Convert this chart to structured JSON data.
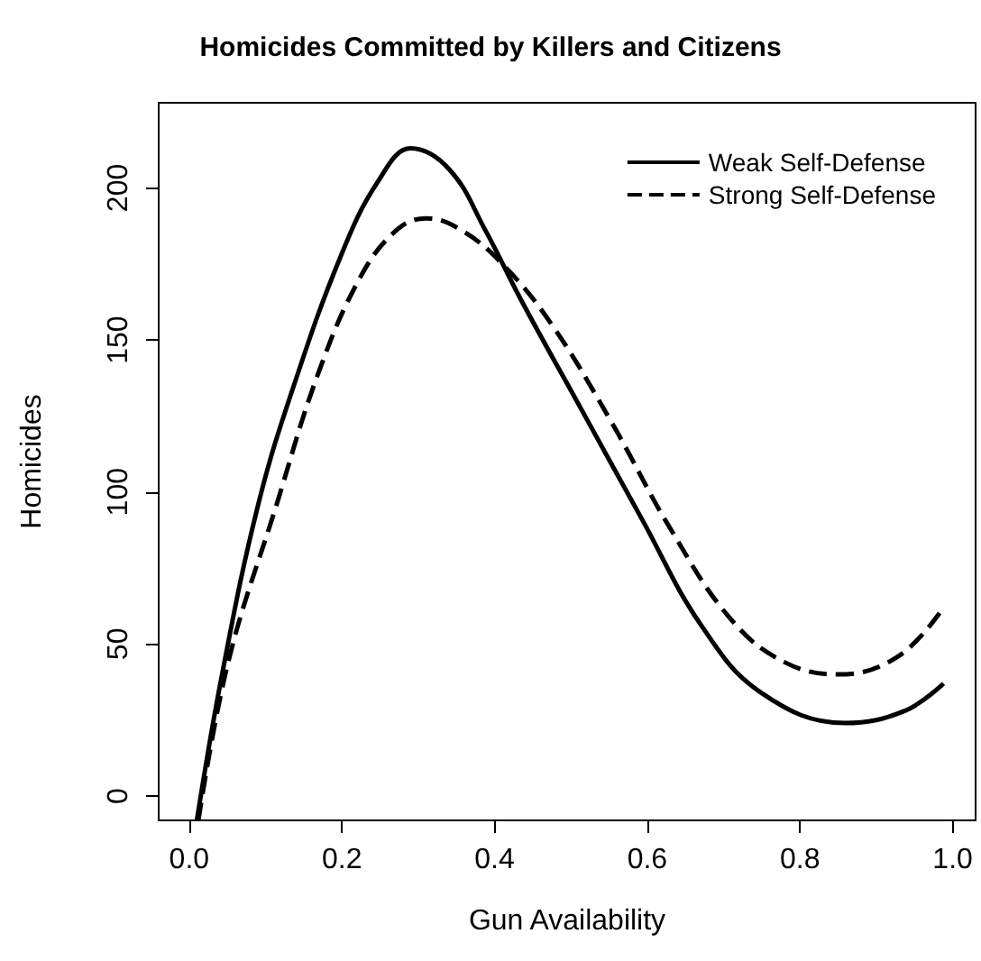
{
  "chart_data": {
    "type": "line",
    "title": "Homicides Committed by Killers and Citizens",
    "xlabel": "Gun Availability",
    "ylabel": "Homicides",
    "xlim": [
      -0.04,
      1.03
    ],
    "xticks": [
      {
        "value": 0,
        "label": "0.0"
      },
      0.2,
      0.4,
      0.6,
      0.8,
      {
        "value": 1,
        "label": "1.0"
      }
    ],
    "ylim": [
      -8,
      228
    ],
    "yticks": [
      0,
      50,
      100,
      150,
      200
    ],
    "grid": false,
    "legend": "top right",
    "marker": "none",
    "series": [
      {
        "name": "Weak Self-Defense",
        "color": "#000000",
        "line_style": "solid",
        "x": [
          0.01,
          0.043,
          0.09,
          0.137,
          0.2,
          0.247,
          0.29,
          0.341,
          0.388,
          0.435,
          0.514,
          0.592,
          0.671,
          0.749,
          0.859,
          0.937,
          0.988
        ],
        "values": [
          -8,
          40,
          95.5,
          135,
          178.5,
          202,
          213,
          206,
          186,
          163,
          127,
          91.5,
          56,
          34,
          24,
          28,
          37
        ]
      },
      {
        "name": "Strong Self-Defense",
        "color": "#000000",
        "line_style": "dashed",
        "x": [
          0.012,
          0.051,
          0.114,
          0.169,
          0.224,
          0.271,
          0.31,
          0.357,
          0.412,
          0.475,
          0.553,
          0.631,
          0.71,
          0.78,
          0.851,
          0.929,
          0.988
        ],
        "values": [
          -8,
          44,
          95.5,
          139,
          170.6,
          186,
          190,
          186,
          174.5,
          155,
          123,
          87.6,
          58,
          44,
          40,
          46,
          62
        ]
      }
    ]
  }
}
